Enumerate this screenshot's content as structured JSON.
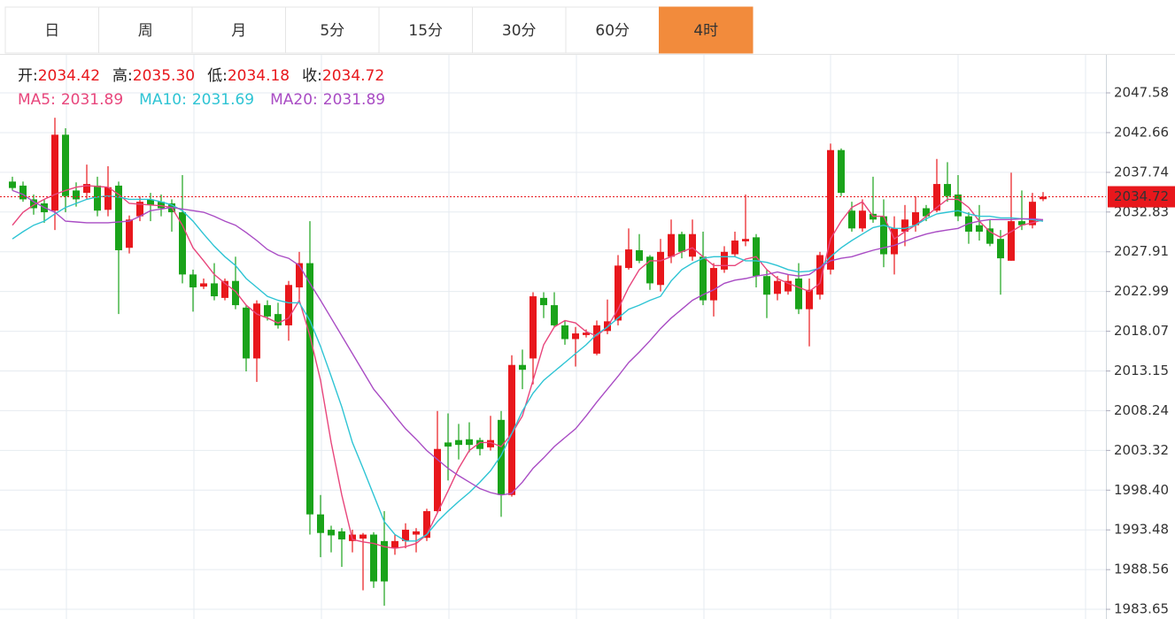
{
  "tabs": [
    "日",
    "周",
    "月",
    "5分",
    "15分",
    "30分",
    "60分",
    "4时"
  ],
  "active_tab": 7,
  "chart_data": {
    "type": "candlestick",
    "ohlc_legend": [
      {
        "label": "开:",
        "value": "2034.42"
      },
      {
        "label": "高:",
        "value": "2035.30"
      },
      {
        "label": "低:",
        "value": "2034.18"
      },
      {
        "label": "收:",
        "value": "2034.72"
      }
    ],
    "up_color": "#e8171c",
    "down_color": "#1aa31a",
    "grid": true,
    "ylim": [
      1982.45,
      2052.29
    ],
    "yticks": [
      {
        "value": 1983.65,
        "label": "1983.65"
      },
      1988.56,
      1993.48,
      {
        "value": 1998.4,
        "label": "1998.40"
      },
      2003.32,
      2008.24,
      2013.15,
      2018.07,
      2022.99,
      2027.91,
      2032.83,
      2037.74,
      2042.66,
      2047.58
    ],
    "open": [
      2036.6,
      2036.1,
      2034.4,
      2033.9,
      2033.0,
      2042.4,
      2035.5,
      2035.2,
      2036.1,
      2033.1,
      2036.1,
      2028.4,
      2032.3,
      2034.4,
      2034.1,
      2033.9,
      2032.8,
      2025.1,
      2023.6,
      2024.0,
      2022.2,
      2024.3,
      2021.0,
      2014.7,
      2021.3,
      2020.2,
      2018.8,
      2023.5,
      2026.5,
      1995.4,
      1993.5,
      1993.3,
      1992.1,
      1992.4,
      1992.9,
      1992.1,
      1991.2,
      1992.1,
      1992.9,
      1992.5,
      1995.8,
      2004.3,
      2004.6,
      2004.7,
      2004.6,
      2003.7,
      2007.1,
      1997.8,
      2013.9,
      2014.7,
      2022.2,
      2021.3,
      2018.8,
      2017.1,
      2017.6,
      2015.3,
      2018.1,
      2019.4,
      2025.9,
      2028.1,
      2027.3,
      2023.8,
      2027.3,
      2030.1,
      2027.3,
      2027.3,
      2021.9,
      2025.7,
      2027.6,
      2029.2,
      2029.7,
      2024.9,
      2022.7,
      2023.0,
      2024.6,
      2020.8,
      2022.6,
      2025.7,
      2040.5,
      2033.0,
      2030.8,
      2032.6,
      2032.3,
      2027.6,
      2030.4,
      2031.2,
      2033.3,
      2033.0,
      2036.3,
      2035.0,
      2032.3,
      2031.2,
      2030.8,
      2029.5,
      2026.8,
      2031.7,
      2031.2,
      2034.42
    ],
    "high": [
      2037.2,
      2036.6,
      2035.0,
      2034.4,
      2044.5,
      2043.2,
      2036.5,
      2038.7,
      2037.2,
      2038.5,
      2036.6,
      2032.4,
      2034.8,
      2035.2,
      2035.0,
      2034.4,
      2037.4,
      2025.7,
      2024.6,
      2026.5,
      2024.6,
      2027.3,
      2021.3,
      2021.9,
      2021.9,
      2021.6,
      2024.3,
      2027.9,
      2031.7,
      1997.8,
      1994.0,
      1993.7,
      1993.5,
      1993.1,
      1993.2,
      1995.8,
      1992.9,
      1994.3,
      1993.7,
      1996.1,
      2008.2,
      2007.9,
      2006.6,
      2006.8,
      2004.9,
      2007.6,
      2008.2,
      2015.1,
      2015.8,
      2022.9,
      2022.9,
      2022.9,
      2019.4,
      2018.6,
      2018.3,
      2019.4,
      2022.0,
      2027.5,
      2030.8,
      2030.1,
      2027.5,
      2029.5,
      2031.9,
      2030.4,
      2031.9,
      2030.4,
      2026.5,
      2028.6,
      2030.4,
      2035.0,
      2030.1,
      2025.7,
      2024.9,
      2025.1,
      2026.5,
      2024.6,
      2027.9,
      2041.3,
      2040.7,
      2034.1,
      2034.4,
      2037.2,
      2034.4,
      2032.3,
      2033.7,
      2034.8,
      2033.7,
      2039.4,
      2039.0,
      2037.4,
      2032.8,
      2033.7,
      2031.9,
      2030.6,
      2037.7,
      2035.5,
      2035.2,
      2035.3
    ],
    "low": [
      2035.5,
      2034.1,
      2032.5,
      2031.5,
      2030.6,
      2032.8,
      2033.5,
      2034.4,
      2032.3,
      2032.3,
      2020.2,
      2027.7,
      2031.7,
      2031.7,
      2032.3,
      2030.4,
      2024.0,
      2020.5,
      2023.3,
      2021.9,
      2021.9,
      2020.8,
      2013.1,
      2011.8,
      2019.4,
      2018.4,
      2016.9,
      2021.9,
      1992.9,
      1990.1,
      1990.7,
      1988.9,
      1990.7,
      1986.0,
      1986.3,
      1984.1,
      1990.4,
      1991.2,
      1990.7,
      1992.1,
      1995.6,
      1999.6,
      2002.2,
      2003.1,
      2002.7,
      2003.3,
      1995.1,
      1997.6,
      2010.9,
      2011.5,
      2019.7,
      2018.6,
      2016.4,
      2013.7,
      2017.3,
      2015.1,
      2017.7,
      2018.8,
      2025.7,
      2026.5,
      2023.2,
      2023.0,
      2026.5,
      2027.1,
      2026.8,
      2021.3,
      2019.9,
      2025.3,
      2027.3,
      2028.6,
      2023.5,
      2019.7,
      2021.9,
      2022.6,
      2020.2,
      2016.2,
      2022.0,
      2025.1,
      2034.8,
      2030.4,
      2030.4,
      2031.5,
      2026.0,
      2025.1,
      2028.6,
      2030.4,
      2031.7,
      2032.8,
      2034.1,
      2031.7,
      2028.9,
      2029.3,
      2028.6,
      2022.6,
      2026.8,
      2030.6,
      2030.8,
      2034.18
    ],
    "close": [
      2035.8,
      2034.4,
      2033.3,
      2032.8,
      2042.4,
      2034.8,
      2034.4,
      2036.3,
      2033.0,
      2035.9,
      2028.1,
      2031.9,
      2034.1,
      2033.7,
      2033.3,
      2032.8,
      2025.1,
      2023.5,
      2024.0,
      2022.4,
      2024.3,
      2021.3,
      2014.7,
      2021.5,
      2019.9,
      2018.8,
      2023.8,
      2026.5,
      1995.4,
      1993.1,
      1992.8,
      1992.3,
      1992.9,
      1992.9,
      1987.1,
      1987.1,
      1992.1,
      1993.5,
      1993.3,
      1995.8,
      2003.5,
      2003.8,
      2004.0,
      2004.0,
      2003.5,
      2004.6,
      1997.8,
      2013.9,
      2013.3,
      2022.4,
      2021.3,
      2018.8,
      2017.1,
      2017.8,
      2017.9,
      2018.8,
      2019.3,
      2026.2,
      2028.2,
      2026.8,
      2024.0,
      2027.9,
      2030.1,
      2027.9,
      2030.1,
      2021.9,
      2025.9,
      2027.9,
      2029.3,
      2029.5,
      2024.9,
      2022.6,
      2024.3,
      2024.3,
      2020.8,
      2023.2,
      2027.5,
      2040.5,
      2035.2,
      2030.8,
      2033.0,
      2031.9,
      2027.6,
      2030.8,
      2031.9,
      2032.8,
      2032.3,
      2036.3,
      2034.8,
      2032.3,
      2030.4,
      2030.4,
      2028.9,
      2027.1,
      2031.7,
      2031.2,
      2034.1,
      2034.72
    ],
    "series": [
      {
        "name": "MA5:",
        "last_label": "2031.89",
        "color": "#e8467c",
        "values": [
          2031.2,
          2032.8,
          2033.7,
          2034.4,
          2035.0,
          2035.5,
          2035.9,
          2036.1,
          2036.0,
          2035.9,
          2035.0,
          2033.9,
          2033.8,
          2033.7,
          2033.6,
          2033.4,
          2031.2,
          2028.4,
          2026.8,
          2025.1,
          2024.0,
          2023.0,
          2021.3,
          2020.2,
          2019.7,
          2019.1,
          2019.7,
          2021.9,
          2017.5,
          2012.0,
          2004.3,
          1997.8,
          1992.3,
          1992.0,
          1991.8,
          1991.4,
          1991.2,
          1991.4,
          1991.8,
          1992.9,
          1995.6,
          1998.3,
          2001.1,
          2003.3,
          2004.3,
          2004.3,
          2003.8,
          2005.4,
          2007.6,
          2012.0,
          2016.4,
          2018.6,
          2019.4,
          2019.1,
          2018.0,
          2017.5,
          2018.6,
          2020.8,
          2023.5,
          2025.7,
          2026.8,
          2026.8,
          2027.3,
          2027.9,
          2028.4,
          2027.3,
          2026.2,
          2026.2,
          2026.2,
          2027.0,
          2027.3,
          2025.7,
          2024.6,
          2024.0,
          2023.5,
          2023.0,
          2024.0,
          2029.5,
          2031.7,
          2033.4,
          2034.1,
          2032.3,
          2032.3,
          2029.5,
          2030.4,
          2031.2,
          2032.3,
          2033.4,
          2034.4,
          2034.4,
          2033.4,
          2031.7,
          2030.4,
          2029.7,
          2030.4,
          2031.2,
          2031.5,
          2031.89
        ]
      },
      {
        "name": "MA10:",
        "last_label": "2031.69",
        "color": "#2ec4d4",
        "values": [
          2029.5,
          2030.4,
          2031.2,
          2031.7,
          2032.6,
          2033.4,
          2033.9,
          2034.4,
          2034.7,
          2034.8,
          2034.7,
          2034.4,
          2034.4,
          2034.4,
          2034.1,
          2033.7,
          2033.0,
          2031.7,
          2030.1,
          2028.6,
          2027.3,
          2026.2,
          2024.6,
          2023.5,
          2022.4,
          2021.9,
          2021.6,
          2021.6,
          2019.4,
          2016.2,
          2012.5,
          2008.7,
          2004.3,
          2001.1,
          1997.8,
          1994.5,
          1992.9,
          1992.1,
          1992.1,
          1992.9,
          1994.5,
          1995.8,
          1997.0,
          1998.1,
          1999.4,
          2000.8,
          2002.7,
          2005.4,
          2008.2,
          2010.4,
          2012.0,
          2013.1,
          2014.2,
          2015.3,
          2016.4,
          2017.7,
          2018.6,
          2019.7,
          2020.8,
          2021.3,
          2021.9,
          2022.4,
          2024.3,
          2025.7,
          2026.5,
          2027.1,
          2027.3,
          2027.3,
          2027.3,
          2026.8,
          2026.8,
          2026.6,
          2026.2,
          2025.7,
          2025.4,
          2025.5,
          2025.9,
          2027.3,
          2028.4,
          2029.3,
          2030.1,
          2030.9,
          2031.2,
          2030.8,
          2030.8,
          2031.2,
          2032.0,
          2032.6,
          2032.8,
          2033.0,
          2032.6,
          2032.3,
          2032.3,
          2032.1,
          2032.1,
          2032.0,
          2031.9,
          2031.69
        ]
      },
      {
        "name": "MA20:",
        "last_label": "2031.89",
        "color": "#a94cc4",
        "values": [
          2035.5,
          2035.0,
          2034.1,
          2033.4,
          2032.8,
          2031.7,
          2031.6,
          2031.5,
          2031.5,
          2031.5,
          2031.6,
          2031.7,
          2032.3,
          2033.0,
          2033.2,
          2033.4,
          2033.2,
          2033.0,
          2032.8,
          2032.3,
          2031.7,
          2031.2,
          2030.3,
          2029.3,
          2028.2,
          2027.5,
          2027.1,
          2026.2,
          2024.0,
          2021.9,
          2019.7,
          2017.5,
          2015.3,
          2013.1,
          2010.9,
          2009.3,
          2007.6,
          2006.0,
          2004.7,
          2003.3,
          2002.2,
          2001.1,
          2000.2,
          1999.4,
          1998.6,
          1998.1,
          1997.8,
          1998.0,
          1999.4,
          2001.1,
          2002.4,
          2003.8,
          2004.9,
          2006.0,
          2007.6,
          2009.3,
          2010.9,
          2012.5,
          2014.2,
          2015.5,
          2016.9,
          2018.4,
          2019.7,
          2020.8,
          2021.9,
          2022.6,
          2023.2,
          2024.0,
          2024.4,
          2024.6,
          2024.9,
          2025.1,
          2025.4,
          2025.1,
          2024.9,
          2025.1,
          2026.0,
          2026.8,
          2027.1,
          2027.3,
          2027.7,
          2028.1,
          2028.4,
          2028.7,
          2029.2,
          2029.7,
          2030.1,
          2030.4,
          2030.6,
          2030.8,
          2031.4,
          2031.7,
          2031.9,
          2031.9,
          2031.9,
          2032.0,
          2032.0,
          2031.89
        ]
      }
    ]
  }
}
